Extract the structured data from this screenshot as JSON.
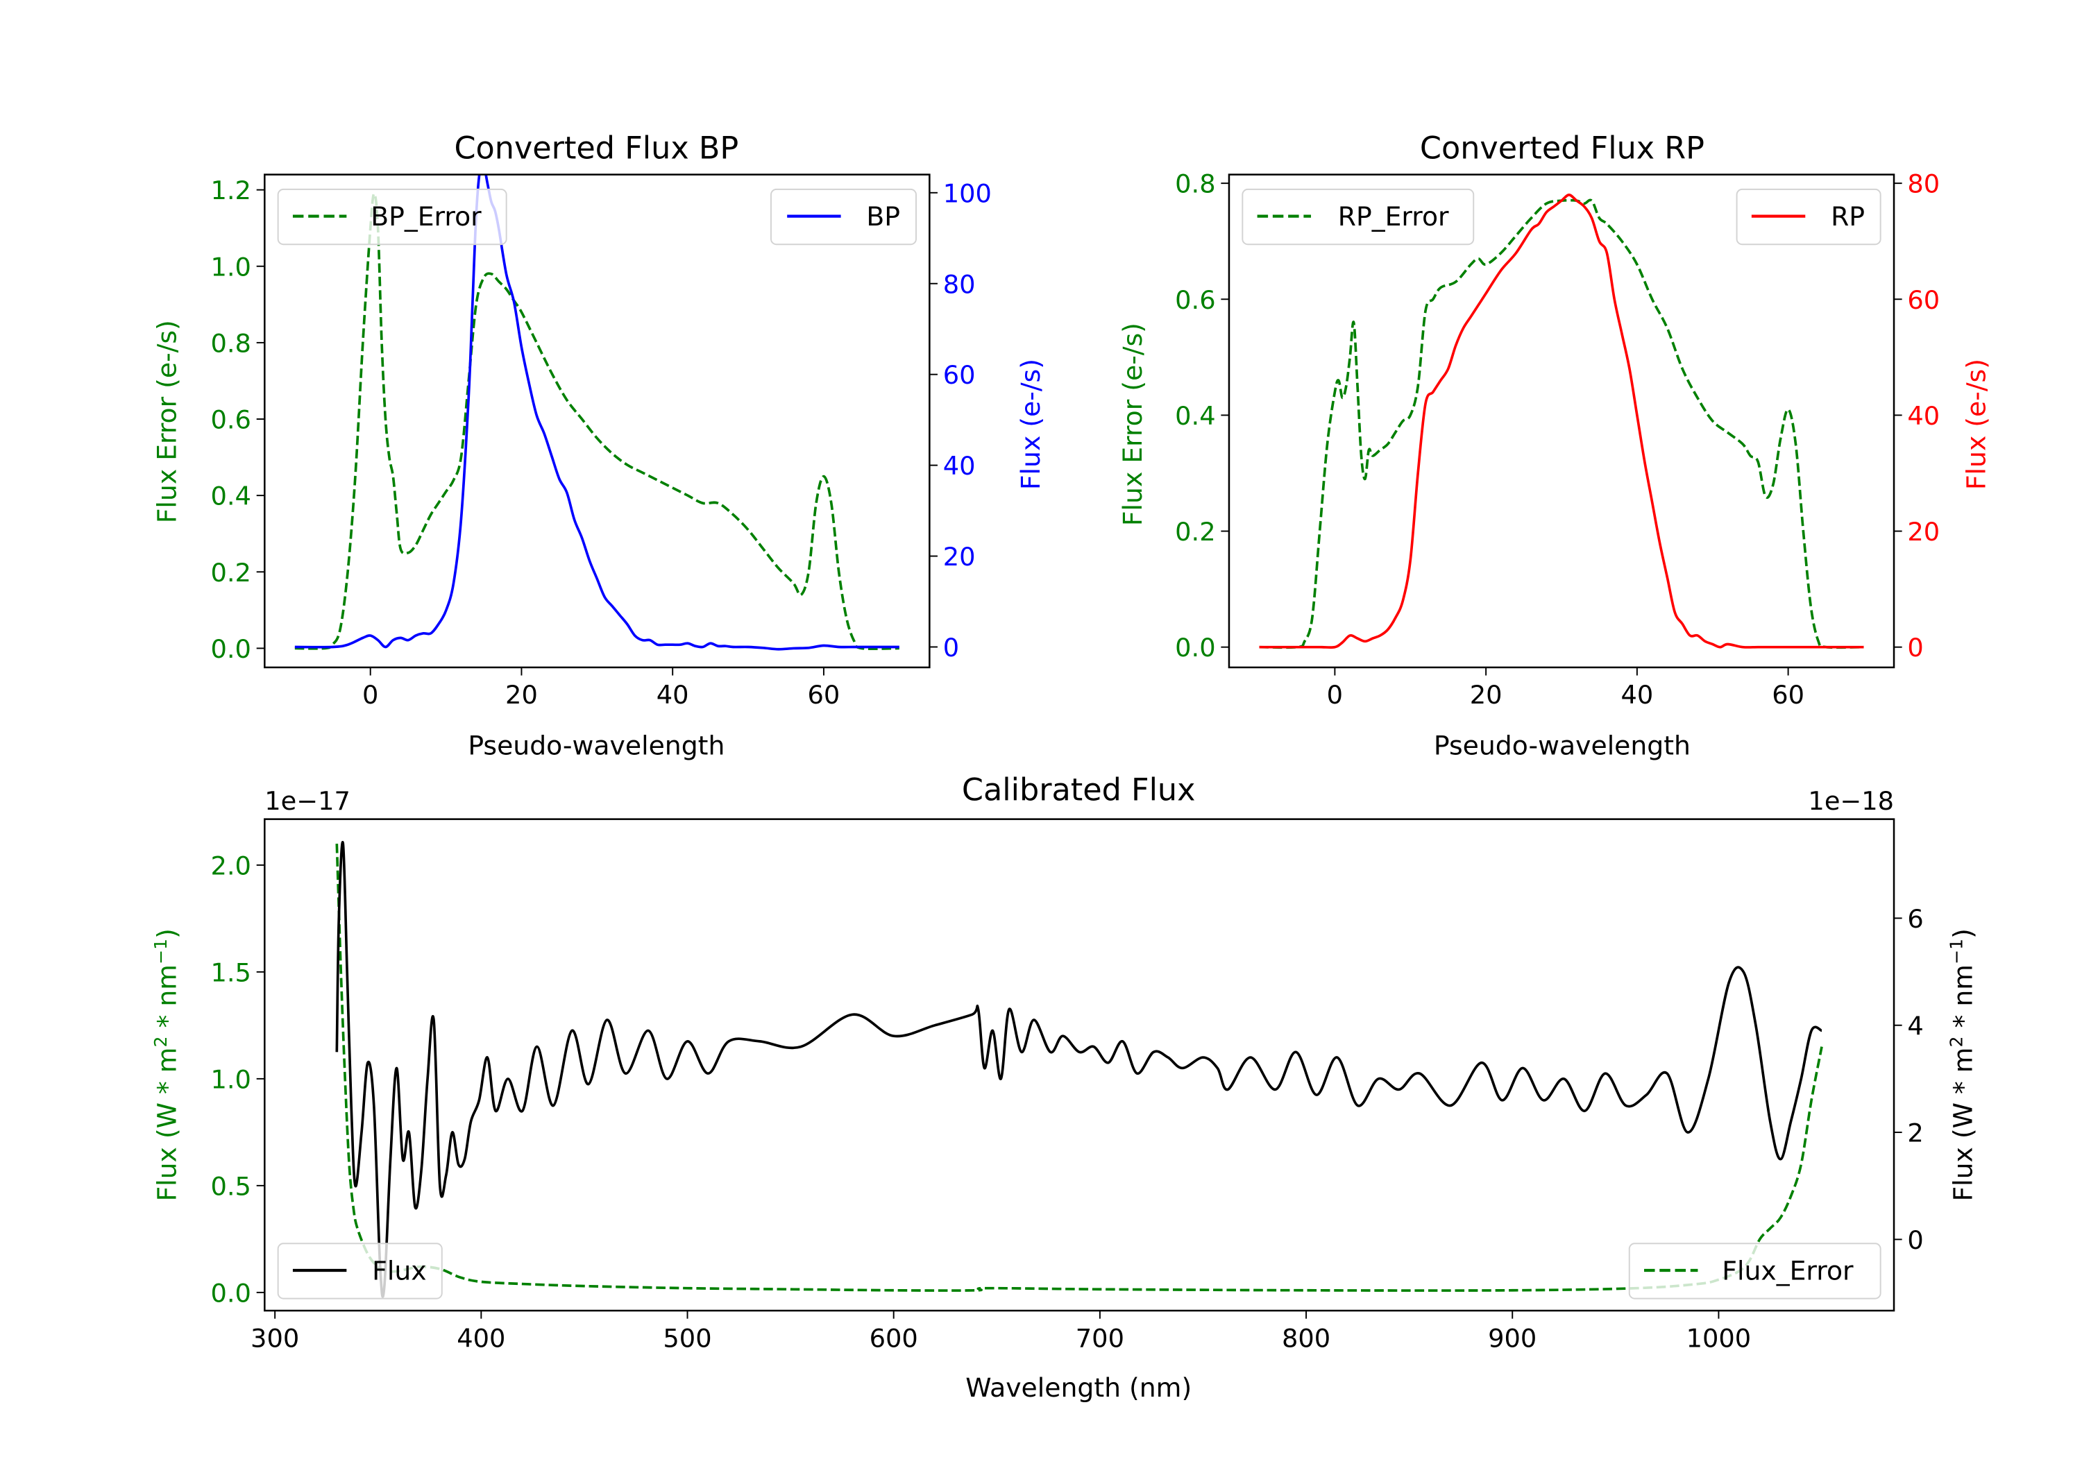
{
  "colors": {
    "bp": "#0000ff",
    "rp": "#ff0000",
    "error": "#008000",
    "flux": "#000000",
    "axes": "#000000"
  },
  "chart_data": [
    {
      "id": "bp",
      "type": "line",
      "title": "Converted Flux BP",
      "xlabel": "Pseudo-wavelength",
      "ylabel_left": "Flux Error (e-/s)",
      "ylabel_right": "Flux (e-/s)",
      "xlim": [
        -14,
        74
      ],
      "ylim_left": [
        -0.05,
        1.24
      ],
      "ylim_right": [
        -4.5,
        104
      ],
      "xticks": [
        0,
        20,
        40,
        60
      ],
      "yticks_left": [
        0.0,
        0.2,
        0.4,
        0.6,
        0.8,
        1.0,
        1.2
      ],
      "yticks_left_labels": [
        "0.0",
        "0.2",
        "0.4",
        "0.6",
        "0.8",
        "1.0",
        "1.2"
      ],
      "yticks_right": [
        0,
        20,
        40,
        60,
        80,
        100
      ],
      "grid": false,
      "legend_left": {
        "placement": "top-left",
        "entries": [
          "BP_Error"
        ]
      },
      "legend_right": {
        "placement": "top-right",
        "entries": [
          "BP"
        ]
      },
      "series": [
        {
          "name": "BP_Error",
          "axis": "left",
          "color": "#008000",
          "style": "dashed",
          "x": [
            -10,
            -6,
            -5,
            -4,
            -3,
            -2,
            -1,
            0,
            0.5,
            1,
            1.5,
            2,
            2.5,
            3,
            3.5,
            4,
            5,
            6,
            7,
            8,
            9,
            10,
            11,
            12,
            13,
            14,
            15,
            16,
            17,
            18,
            19,
            20,
            22,
            24,
            26,
            28,
            30,
            32,
            34,
            36,
            38,
            40,
            42,
            44,
            46,
            48,
            50,
            52,
            54,
            56,
            57,
            58,
            59,
            60,
            61,
            62,
            63,
            64,
            65,
            70
          ],
          "y": [
            0.0,
            0.0,
            0.01,
            0.05,
            0.2,
            0.45,
            0.8,
            1.1,
            1.19,
            1.1,
            0.8,
            0.6,
            0.5,
            0.45,
            0.35,
            0.26,
            0.25,
            0.27,
            0.31,
            0.35,
            0.38,
            0.41,
            0.44,
            0.5,
            0.7,
            0.9,
            0.97,
            0.98,
            0.96,
            0.94,
            0.91,
            0.88,
            0.8,
            0.72,
            0.65,
            0.6,
            0.55,
            0.51,
            0.48,
            0.46,
            0.44,
            0.42,
            0.4,
            0.38,
            0.38,
            0.35,
            0.31,
            0.26,
            0.21,
            0.17,
            0.14,
            0.2,
            0.38,
            0.45,
            0.38,
            0.2,
            0.08,
            0.02,
            0.0,
            0.0
          ]
        },
        {
          "name": "BP",
          "axis": "right",
          "color": "#0000ff",
          "style": "solid",
          "x": [
            -10,
            -5,
            -3,
            -1,
            0,
            1,
            2,
            3,
            4,
            5,
            6,
            7,
            8,
            9,
            10,
            11,
            12,
            13,
            13.5,
            14,
            14.5,
            15,
            15.5,
            16,
            16.5,
            17,
            18,
            19,
            20,
            21,
            22,
            23,
            24,
            25,
            26,
            27,
            28,
            29,
            30,
            31,
            32,
            33,
            34,
            35,
            36,
            37,
            38,
            39,
            40,
            41,
            42,
            43,
            44,
            45,
            46,
            47,
            48,
            50,
            52,
            54,
            56,
            58,
            60,
            62,
            64,
            66,
            70
          ],
          "y": [
            0,
            0,
            0.5,
            2,
            2.5,
            1.5,
            0,
            1.5,
            2,
            1.5,
            2.5,
            3,
            3,
            5,
            8,
            14,
            28,
            55,
            75,
            95,
            105,
            106,
            102,
            98,
            96,
            92,
            82,
            76,
            66,
            58,
            51,
            47,
            42,
            37,
            34,
            28,
            24,
            19,
            15,
            11,
            9,
            7,
            5,
            2.5,
            1.5,
            1.5,
            0.5,
            0.5,
            0.5,
            0.5,
            0.8,
            0.2,
            0,
            0.8,
            0.2,
            0.2,
            0,
            0,
            -0.2,
            -0.5,
            -0.3,
            -0.2,
            0.3,
            0,
            0,
            0,
            0
          ]
        }
      ]
    },
    {
      "id": "rp",
      "type": "line",
      "title": "Converted Flux RP",
      "xlabel": "Pseudo-wavelength",
      "ylabel_left": "Flux Error (e-/s)",
      "ylabel_right": "Flux (e-/s)",
      "xlim": [
        -14,
        74
      ],
      "ylim_left": [
        -0.035,
        0.815
      ],
      "ylim_right": [
        -3.5,
        81.5
      ],
      "xticks": [
        0,
        20,
        40,
        60
      ],
      "yticks_left": [
        0.0,
        0.2,
        0.4,
        0.6,
        0.8
      ],
      "yticks_left_labels": [
        "0.0",
        "0.2",
        "0.4",
        "0.6",
        "0.8"
      ],
      "yticks_right": [
        0,
        20,
        40,
        60,
        80
      ],
      "grid": false,
      "legend_left": {
        "placement": "top-left",
        "entries": [
          "RP_Error"
        ]
      },
      "legend_right": {
        "placement": "top-right",
        "entries": [
          "RP"
        ]
      },
      "series": [
        {
          "name": "RP_Error",
          "axis": "left",
          "color": "#008000",
          "style": "dashed",
          "x": [
            -10,
            -5,
            -4,
            -3,
            -2,
            -1,
            0,
            0.5,
            1,
            1.5,
            2,
            2.5,
            3,
            3.5,
            4,
            4.5,
            5,
            6,
            7,
            8,
            9,
            10,
            11,
            12,
            13,
            14,
            16,
            18,
            19,
            20,
            22,
            24,
            26,
            28,
            30,
            32,
            33,
            34,
            35,
            36,
            38,
            40,
            42,
            44,
            46,
            48,
            50,
            52,
            54,
            55,
            56,
            57,
            58,
            59,
            60,
            61,
            62,
            63,
            64,
            65,
            70
          ],
          "y": [
            0.0,
            0.0,
            0.01,
            0.05,
            0.2,
            0.35,
            0.44,
            0.46,
            0.43,
            0.45,
            0.5,
            0.56,
            0.45,
            0.33,
            0.29,
            0.34,
            0.33,
            0.34,
            0.35,
            0.37,
            0.39,
            0.4,
            0.45,
            0.58,
            0.6,
            0.62,
            0.63,
            0.66,
            0.67,
            0.66,
            0.68,
            0.71,
            0.74,
            0.765,
            0.77,
            0.77,
            0.765,
            0.77,
            0.74,
            0.73,
            0.7,
            0.66,
            0.6,
            0.55,
            0.48,
            0.43,
            0.39,
            0.37,
            0.35,
            0.33,
            0.32,
            0.26,
            0.28,
            0.36,
            0.41,
            0.35,
            0.2,
            0.07,
            0.01,
            0.0,
            0.0
          ]
        },
        {
          "name": "RP",
          "axis": "right",
          "color": "#ff0000",
          "style": "solid",
          "x": [
            -10,
            -5,
            -2,
            0,
            1,
            2,
            3,
            4,
            5,
            6,
            7,
            8,
            9,
            10,
            11,
            12,
            13,
            14,
            15,
            16,
            17,
            18,
            19,
            20,
            22,
            24,
            26,
            27,
            28,
            29,
            30,
            31,
            32,
            33,
            34,
            35,
            36,
            37,
            38,
            39,
            40,
            41,
            42,
            43,
            44,
            45,
            46,
            47,
            48,
            49,
            50,
            51,
            52,
            54,
            56,
            58,
            60,
            62,
            66,
            70
          ],
          "y": [
            0,
            0,
            0,
            0,
            0.8,
            2,
            1.5,
            1,
            1.5,
            2,
            3,
            5,
            8,
            15,
            30,
            42,
            44,
            46,
            48,
            52,
            55,
            57,
            59,
            61,
            65,
            68,
            72,
            73,
            75,
            76,
            77,
            78,
            77,
            76,
            74,
            70,
            68,
            60,
            54,
            48,
            40,
            32,
            25,
            18,
            12,
            6,
            4,
            2,
            2,
            1,
            0.5,
            0,
            0.5,
            0,
            0,
            0,
            0,
            0,
            0,
            0
          ]
        }
      ]
    },
    {
      "id": "calibrated",
      "type": "line",
      "title": "Calibrated Flux",
      "xlabel": "Wavelength (nm)",
      "ylabel_left": "Flux (W * m$^2$ * nm$^{-1}$)",
      "ylabel_left_display": [
        "Flux (W * m",
        "2",
        " * nm",
        "−1",
        ")"
      ],
      "ylabel_right_display": [
        "Flux (W * m",
        "2",
        " * nm",
        "−1",
        ")"
      ],
      "offset_left": "1e−17",
      "offset_right": "1e−18",
      "xlim": [
        295,
        1085
      ],
      "ylim_left": [
        -0.085,
        2.215
      ],
      "ylim_right": [
        -1.33,
        7.85
      ],
      "xticks": [
        300,
        400,
        500,
        600,
        700,
        800,
        900,
        1000
      ],
      "yticks_left": [
        0.0,
        0.5,
        1.0,
        1.5,
        2.0
      ],
      "yticks_left_labels": [
        "0.0",
        "0.5",
        "1.0",
        "1.5",
        "2.0"
      ],
      "yticks_right": [
        0,
        2,
        4,
        6
      ],
      "grid": false,
      "legend_left": {
        "placement": "bottom-left",
        "entries": [
          "Flux"
        ]
      },
      "legend_right": {
        "placement": "bottom-right",
        "entries": [
          "Flux_Error"
        ]
      },
      "series": [
        {
          "name": "Flux_Error",
          "axis": "left",
          "unit_scale": "1e-17",
          "color": "#008000",
          "style": "dashed",
          "x": [
            330,
            332,
            334,
            336,
            338,
            340,
            345,
            350,
            355,
            360,
            370,
            380,
            390,
            400,
            420,
            450,
            500,
            550,
            600,
            640,
            645,
            700,
            800,
            900,
            960,
            990,
            1000,
            1010,
            1015,
            1020,
            1025,
            1030,
            1035,
            1040,
            1045,
            1050
          ],
          "y": [
            2.1,
            1.5,
            1.0,
            0.6,
            0.4,
            0.3,
            0.18,
            0.12,
            0.1,
            0.1,
            0.12,
            0.11,
            0.07,
            0.05,
            0.04,
            0.03,
            0.02,
            0.015,
            0.01,
            0.01,
            0.02,
            0.015,
            0.01,
            0.01,
            0.02,
            0.04,
            0.06,
            0.1,
            0.15,
            0.25,
            0.3,
            0.35,
            0.45,
            0.6,
            0.9,
            1.15
          ]
        },
        {
          "name": "Flux",
          "axis": "right",
          "unit_scale": "1e-18",
          "color": "#000000",
          "style": "solid",
          "x": [
            330,
            331,
            333,
            335,
            337,
            339,
            342,
            345,
            348,
            351,
            353,
            356,
            359,
            362,
            365,
            368,
            371,
            374,
            377,
            380,
            383,
            386,
            389,
            392,
            395,
            399,
            403,
            407,
            413,
            420,
            427,
            435,
            444,
            452,
            461,
            470,
            481,
            490,
            500,
            510,
            520,
            535,
            555,
            580,
            600,
            620,
            638,
            641,
            644,
            648,
            652,
            656,
            662,
            668,
            676,
            682,
            690,
            697,
            704,
            711,
            718,
            726,
            733,
            740,
            750,
            757,
            762,
            773,
            785,
            795,
            805,
            815,
            825,
            835,
            845,
            855,
            870,
            885,
            895,
            905,
            915,
            925,
            935,
            945,
            955,
            965,
            975,
            985,
            995,
            1005,
            1012,
            1018,
            1025,
            1030,
            1035,
            1040,
            1045,
            1050
          ],
          "y": [
            3.5,
            6.0,
            7.4,
            5.0,
            2.5,
            1.0,
            2.0,
            3.3,
            2.5,
            -0.5,
            -0.9,
            1.5,
            3.2,
            1.5,
            2.0,
            0.6,
            1.3,
            3.0,
            4.1,
            1.0,
            1.2,
            2.0,
            1.4,
            1.5,
            2.2,
            2.6,
            3.4,
            2.4,
            3.0,
            2.4,
            3.6,
            2.5,
            3.9,
            2.9,
            4.1,
            3.1,
            3.9,
            3.0,
            3.7,
            3.1,
            3.7,
            3.7,
            3.6,
            4.2,
            3.8,
            4.0,
            4.2,
            4.3,
            3.2,
            3.9,
            3.0,
            4.3,
            3.5,
            4.1,
            3.5,
            3.8,
            3.5,
            3.6,
            3.3,
            3.7,
            3.1,
            3.5,
            3.4,
            3.2,
            3.4,
            3.2,
            2.8,
            3.4,
            2.8,
            3.5,
            2.7,
            3.4,
            2.5,
            3.0,
            2.8,
            3.1,
            2.5,
            3.3,
            2.6,
            3.2,
            2.6,
            3.0,
            2.4,
            3.1,
            2.5,
            2.7,
            3.1,
            2.0,
            3.0,
            4.8,
            5.0,
            4.0,
            2.2,
            1.5,
            2.2,
            3.0,
            3.9,
            3.9
          ]
        }
      ]
    }
  ]
}
